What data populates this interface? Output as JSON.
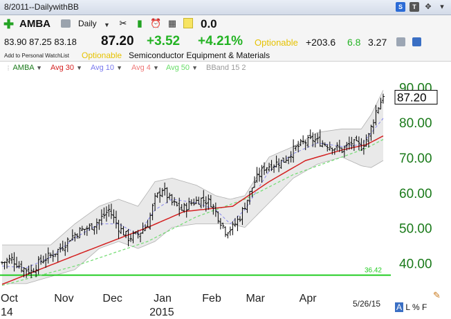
{
  "window": {
    "title": "8/2011--DailywithBB",
    "title_icons": [
      "S",
      "T"
    ]
  },
  "toolbar": {
    "symbol": "AMBA",
    "period": "Daily",
    "change_readout": "0.0"
  },
  "quote": {
    "open": "83.90",
    "high": "87.25",
    "low": "83.18",
    "last": "87.20",
    "change": "+3.52",
    "change_pct": "+4.21%",
    "optionable": "Optionable",
    "metric1": "+203.6",
    "metric2": "6.8",
    "metric3": "3.27"
  },
  "info": {
    "watchlist": "Add to Personal WatchList",
    "optionable": "Optionable",
    "industry": "Semiconductor Equipment & Materials"
  },
  "indicators": [
    {
      "label": "AMBA",
      "color": "#1a7a1a"
    },
    {
      "label": "Avg 30",
      "color": "#d42020"
    },
    {
      "label": "Avg 10",
      "color": "#7777ee"
    },
    {
      "label": "Avg 4",
      "color": "#ee7777"
    },
    {
      "label": "Avg 50",
      "color": "#66dd66"
    },
    {
      "label": "BBand 15 2",
      "color": "#999999"
    }
  ],
  "colors": {
    "price_bars": "#000000",
    "avg30": "#d42020",
    "avg10": "#8888ee",
    "avg50": "#77dd77",
    "bband_fill": "#e9e9e9",
    "bband_edge": "#b0b0b0",
    "hline": "#22cc22",
    "axis_text": "#1a7a1a"
  },
  "chart_data": {
    "type": "line",
    "ylim": [
      33,
      93
    ],
    "yticks": [
      {
        "value": 90,
        "label": "90.00"
      },
      {
        "value": 80,
        "label": "80.00"
      },
      {
        "value": 70,
        "label": "70.00"
      },
      {
        "value": 60,
        "label": "60.00"
      },
      {
        "value": 50,
        "label": "50.00"
      },
      {
        "value": 40,
        "label": "40.00"
      }
    ],
    "last_price_label": "87.20",
    "hline": {
      "value": 36.42,
      "label": "36.42"
    },
    "x_labels": [
      {
        "index": 0,
        "label": "Oct"
      },
      {
        "index": 22,
        "label": "Nov"
      },
      {
        "index": 42,
        "label": "Dec"
      },
      {
        "index": 63,
        "label": "Jan"
      },
      {
        "index": 83,
        "label": "Feb"
      },
      {
        "index": 101,
        "label": "Mar"
      },
      {
        "index": 123,
        "label": "Apr"
      }
    ],
    "year_labels": [
      {
        "index": 0,
        "label": "14"
      },
      {
        "index": 63,
        "label": "2015"
      }
    ],
    "date_label": "5/26/15",
    "close_anchors": [
      [
        0,
        40
      ],
      [
        4,
        41
      ],
      [
        8,
        38.5
      ],
      [
        12,
        37.5
      ],
      [
        16,
        40.5
      ],
      [
        20,
        42
      ],
      [
        24,
        44
      ],
      [
        28,
        47
      ],
      [
        32,
        49
      ],
      [
        36,
        50
      ],
      [
        40,
        52
      ],
      [
        44,
        55
      ],
      [
        48,
        50
      ],
      [
        52,
        47
      ],
      [
        56,
        48
      ],
      [
        60,
        51
      ],
      [
        63,
        58
      ],
      [
        66,
        61
      ],
      [
        70,
        57
      ],
      [
        74,
        55
      ],
      [
        78,
        57
      ],
      [
        82,
        58
      ],
      [
        86,
        57
      ],
      [
        89,
        53
      ],
      [
        92,
        49
      ],
      [
        95,
        50
      ],
      [
        98,
        53
      ],
      [
        101,
        58
      ],
      [
        104,
        63
      ],
      [
        108,
        67
      ],
      [
        112,
        68
      ],
      [
        116,
        69
      ],
      [
        120,
        72
      ],
      [
        124,
        74
      ],
      [
        128,
        75
      ],
      [
        132,
        74
      ],
      [
        136,
        73
      ],
      [
        140,
        72
      ],
      [
        144,
        74
      ],
      [
        148,
        73
      ],
      [
        151,
        76
      ],
      [
        154,
        83
      ],
      [
        157,
        87.2
      ]
    ],
    "series": [
      {
        "name": "Avg 30",
        "points": [
          [
            0,
            33.8
          ],
          [
            30,
            42
          ],
          [
            60,
            50
          ],
          [
            75,
            54.5
          ],
          [
            95,
            56
          ],
          [
            110,
            63
          ],
          [
            125,
            69
          ],
          [
            140,
            72
          ],
          [
            150,
            73.5
          ],
          [
            157,
            76
          ]
        ]
      },
      {
        "name": "Avg 50",
        "points": [
          [
            0,
            33.5
          ],
          [
            30,
            39
          ],
          [
            60,
            46
          ],
          [
            80,
            53
          ],
          [
            100,
            58
          ],
          [
            120,
            65
          ],
          [
            140,
            70
          ],
          [
            150,
            72.5
          ],
          [
            157,
            75
          ]
        ]
      },
      {
        "name": "Avg 10",
        "points": [
          [
            0,
            39
          ],
          [
            10,
            38.5
          ],
          [
            20,
            41.5
          ],
          [
            30,
            47
          ],
          [
            40,
            51
          ],
          [
            48,
            51
          ],
          [
            56,
            48
          ],
          [
            63,
            55
          ],
          [
            70,
            58
          ],
          [
            80,
            57
          ],
          [
            88,
            55
          ],
          [
            94,
            51
          ],
          [
            100,
            55
          ],
          [
            110,
            66
          ],
          [
            120,
            71
          ],
          [
            130,
            74
          ],
          [
            140,
            73
          ],
          [
            148,
            73.5
          ],
          [
            157,
            81
          ]
        ]
      },
      {
        "name": "BBand 15 2 upper",
        "points": [
          [
            0,
            45
          ],
          [
            10,
            45
          ],
          [
            20,
            45
          ],
          [
            30,
            51
          ],
          [
            40,
            56
          ],
          [
            48,
            58
          ],
          [
            56,
            56
          ],
          [
            63,
            63
          ],
          [
            70,
            64
          ],
          [
            80,
            62
          ],
          [
            88,
            59
          ],
          [
            94,
            58
          ],
          [
            100,
            59
          ],
          [
            110,
            70
          ],
          [
            120,
            73
          ],
          [
            130,
            77
          ],
          [
            140,
            78
          ],
          [
            148,
            78
          ],
          [
            152,
            82
          ],
          [
            157,
            89
          ]
        ]
      },
      {
        "name": "BBand 15 2 lower",
        "points": [
          [
            0,
            34
          ],
          [
            10,
            34
          ],
          [
            20,
            36
          ],
          [
            30,
            38
          ],
          [
            40,
            44
          ],
          [
            48,
            46
          ],
          [
            56,
            44
          ],
          [
            63,
            46
          ],
          [
            70,
            50
          ],
          [
            80,
            51
          ],
          [
            88,
            51
          ],
          [
            94,
            51
          ],
          [
            100,
            50
          ],
          [
            110,
            57
          ],
          [
            120,
            64
          ],
          [
            130,
            68
          ],
          [
            140,
            70
          ],
          [
            148,
            67.5
          ],
          [
            152,
            67
          ],
          [
            157,
            69
          ]
        ]
      }
    ]
  }
}
